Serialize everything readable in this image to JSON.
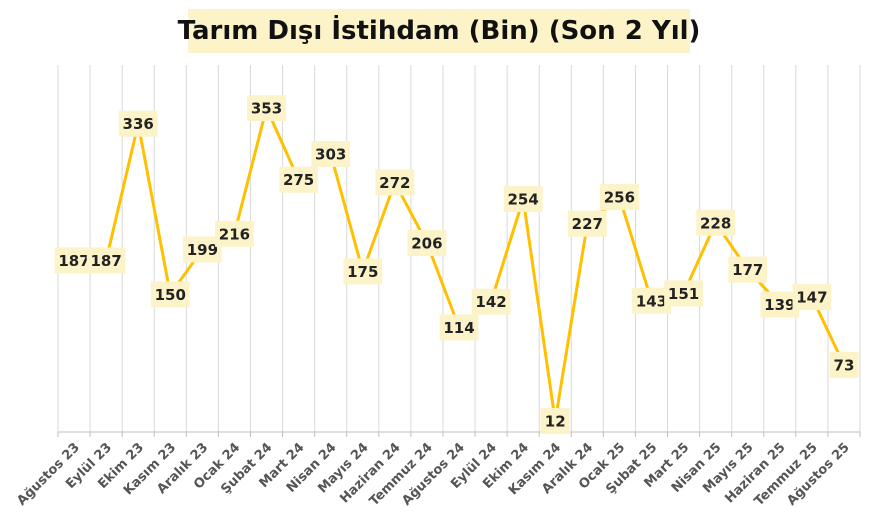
{
  "chart_data": {
    "type": "line",
    "title": "Tarım Dışı İstihdam (Bin) (Son 2 Yıl)",
    "categories": [
      "Ağustos 23",
      "Eylül 23",
      "Ekim 23",
      "Kasım 23",
      "Aralık 23",
      "Ocak 24",
      "Şubat 24",
      "Mart 24",
      "Nisan 24",
      "Mayıs 24",
      "Haziran 24",
      "Temmuz 24",
      "Ağustos 24",
      "Eylül 24",
      "Ekim 24",
      "Kasım 24",
      "Aralık 24",
      "Ocak 25",
      "Şubat 25",
      "Mart 25",
      "Nisan 25",
      "Mayıs 25",
      "Haziran 25",
      "Temmuz 25",
      "Ağustos 25"
    ],
    "values": [
      187,
      187,
      336,
      150,
      199,
      216,
      353,
      275,
      303,
      175,
      272,
      206,
      114,
      142,
      254,
      12,
      227,
      256,
      143,
      151,
      228,
      177,
      139,
      147,
      73
    ],
    "data_labels": [
      "187",
      "187",
      "336",
      "150",
      "199",
      "216",
      "353",
      "275",
      "303",
      "175",
      "272",
      "206",
      "114",
      "142",
      "254",
      "12",
      "227",
      "256",
      "143",
      "151",
      "228",
      "177",
      "139",
      "147",
      "73"
    ],
    "ylim": [
      0,
      400
    ],
    "grid": "vertical",
    "legend": "none",
    "colors": {
      "line": "#FFC000",
      "label_bg": "#FDF3C9",
      "grid": "#D9D9D9",
      "title_bg": "#FDF3C9"
    }
  }
}
